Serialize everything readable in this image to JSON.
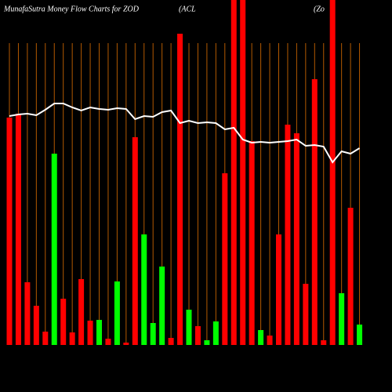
{
  "chart_data": {
    "type": "bar",
    "title": "MunafaSutra  Money Flow  Charts for ZOD",
    "subtitle": "(ACL",
    "ticker": "(Zo",
    "categories": [
      null,
      null,
      null,
      null,
      null,
      null,
      null,
      null,
      null,
      null,
      null,
      null,
      null,
      null,
      null,
      null,
      null,
      null,
      null,
      null,
      null,
      null,
      null,
      null,
      null,
      null,
      null,
      null,
      null,
      null,
      null,
      null,
      null,
      null,
      null,
      null,
      null,
      null,
      null,
      null
    ],
    "values": [
      290,
      295,
      80,
      50,
      17,
      244,
      59,
      16,
      84,
      31,
      32,
      8,
      81,
      3,
      265,
      141,
      28,
      100,
      9,
      397,
      45,
      24,
      6,
      30,
      219,
      440,
      440,
      260,
      19,
      12,
      141,
      281,
      270,
      78,
      339,
      6,
      440,
      66,
      175,
      26
    ],
    "colors": [
      "#ff0000",
      "#ff0000",
      "#ff0000",
      "#ff0000",
      "#ff0000",
      "#00ff00",
      "#ff0000",
      "#ff0000",
      "#ff0000",
      "#ff0000",
      "#00ff00",
      "#ff0000",
      "#00ff00",
      "#ff0000",
      "#ff0000",
      "#00ff00",
      "#00ff00",
      "#00ff00",
      "#ff0000",
      "#ff0000",
      "#00ff00",
      "#ff0000",
      "#00ff00",
      "#00ff00",
      "#ff0000",
      "#ff0000",
      "#ff0000",
      "#ff0000",
      "#00ff00",
      "#ff0000",
      "#ff0000",
      "#ff0000",
      "#ff0000",
      "#ff0000",
      "#ff0000",
      "#ff0000",
      "#ff0000",
      "#00ff00",
      "#ff0000",
      "#00ff00"
    ],
    "ylim": [
      0,
      440
    ],
    "line": {
      "color": "#ffffff",
      "values": [
        292,
        294,
        295,
        293,
        300,
        308,
        308,
        303,
        299,
        303,
        301,
        300,
        302,
        301,
        288,
        292,
        291,
        297,
        299,
        283,
        286,
        283,
        284,
        283,
        275,
        277,
        262,
        258,
        259,
        258,
        259,
        260,
        262,
        254,
        255,
        253,
        233,
        247,
        244,
        251
      ]
    },
    "y2lim": [
      0,
      440
    ],
    "grid": true,
    "grid_color": "#b35900"
  }
}
